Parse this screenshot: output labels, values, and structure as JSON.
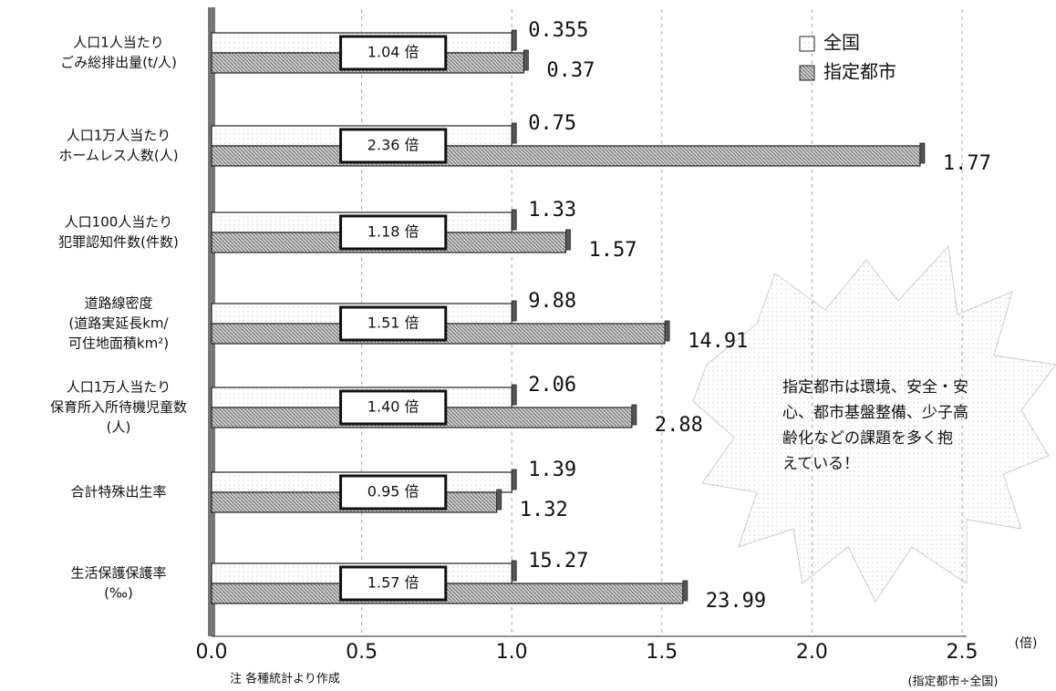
{
  "chart_data": {
    "type": "bar",
    "orientation": "horizontal",
    "categories": [
      [
        "人口1人当たり",
        "ごみ総排出量(t/人)"
      ],
      [
        "人口1万人当たり",
        "ホームレス人数(人)"
      ],
      [
        "人口100人当たり",
        "犯罪認知件数(件数)"
      ],
      [
        "道路線密度",
        "(道路実延長km/",
        "可住地面積km²)"
      ],
      [
        "人口1万人当たり",
        "保育所入所待機児童数",
        "(人)"
      ],
      [
        "合計特殊出生率"
      ],
      [
        "生活保護保護率",
        "(‰)"
      ]
    ],
    "series": [
      {
        "name": "全国",
        "color": "#f4f4f4",
        "values": [
          1,
          1,
          1,
          1,
          1,
          1,
          1
        ],
        "data_labels": [
          "0.355",
          "0.75",
          "1.33",
          "9.88",
          "2.06",
          "1.39",
          "15.27"
        ]
      },
      {
        "name": "指定都市",
        "color": "#b8b8b8",
        "values": [
          1.04,
          2.36,
          1.18,
          1.51,
          1.4,
          0.95,
          1.57
        ],
        "value_labels": [
          "1.04 倍",
          "2.36 倍",
          "1.18 倍",
          "1.51 倍",
          "1.40 倍",
          "0.95 倍",
          "1.57 倍"
        ],
        "data_labels": [
          "0.37",
          "1.77",
          "1.57",
          "14.91",
          "2.88",
          "1.32",
          "23.99"
        ]
      }
    ],
    "xlim": [
      0,
      2.5
    ],
    "xticks": [
      {
        "value": 0,
        "label": "0.0"
      },
      0.5,
      {
        "value": 1,
        "label": "1.0"
      },
      1.5,
      {
        "value": 2,
        "label": "2.0"
      },
      2.5
    ],
    "x_unit": "(倍)",
    "note": "注 各種統計より作成",
    "ratio_note": "(指定都市÷全国)",
    "callout": [
      "指定都市は環境、安全・安",
      "心、都市基盤整備、少子高",
      "齢化などの課題を多く抱",
      "えている！"
    ],
    "legend": "top-right",
    "grid": true
  }
}
